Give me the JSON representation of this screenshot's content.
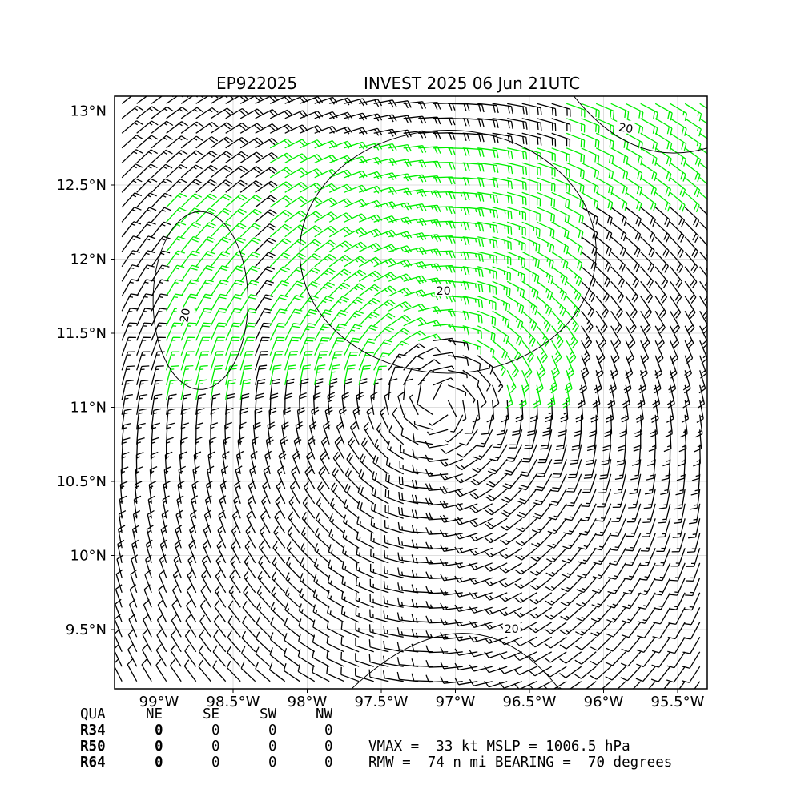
{
  "title": {
    "storm_id": "EP922025",
    "storm_info": "INVEST 2025 06 Jun 21UTC"
  },
  "map": {
    "lon_range": [
      -99.3,
      -95.3
    ],
    "lat_range": [
      9.1,
      13.1
    ],
    "lon_ticks": [
      {
        "value": -99.0,
        "label": "99°W"
      },
      {
        "value": -98.5,
        "label": "98.5°W"
      },
      {
        "value": -98.0,
        "label": "98°W"
      },
      {
        "value": -97.5,
        "label": "97.5°W"
      },
      {
        "value": -97.0,
        "label": "97°W"
      },
      {
        "value": -96.5,
        "label": "96.5°W"
      },
      {
        "value": -96.0,
        "label": "96°W"
      },
      {
        "value": -95.5,
        "label": "95.5°W"
      }
    ],
    "lat_ticks": [
      {
        "value": 13.0,
        "label": "13°N"
      },
      {
        "value": 12.5,
        "label": "12.5°N"
      },
      {
        "value": 12.0,
        "label": "12°N"
      },
      {
        "value": 11.5,
        "label": "11.5°N"
      },
      {
        "value": 11.0,
        "label": "11°N"
      },
      {
        "value": 10.5,
        "label": "10.5°N"
      },
      {
        "value": 10.0,
        "label": "10°N"
      },
      {
        "value": 9.5,
        "label": "9.5°N"
      }
    ],
    "grid": true,
    "center": {
      "lon": -97.1,
      "lat": 11.15
    },
    "barb_spacing_deg": 0.1,
    "colors": {
      "barb_default": "#000000",
      "barb_highlight": "#00ee00",
      "contour": "#000000"
    },
    "highlight_threshold_kt": 20,
    "contour_labels": [
      {
        "text": "20",
        "lon": -98.82,
        "lat": 11.62,
        "rotate": -80
      },
      {
        "text": "20",
        "lon": -97.08,
        "lat": 11.78,
        "rotate": 0
      },
      {
        "text": "20",
        "lon": -95.85,
        "lat": 12.88,
        "rotate": 10
      },
      {
        "text": "20",
        "lon": -96.62,
        "lat": 9.5,
        "rotate": 0
      }
    ]
  },
  "table": {
    "headers": [
      "QUA",
      "NE",
      "SE",
      "SW",
      "NW"
    ],
    "rows": [
      {
        "label": "R34",
        "values": [
          "0",
          "0",
          "0",
          "0"
        ]
      },
      {
        "label": "R50",
        "values": [
          "0",
          "0",
          "0",
          "0"
        ]
      },
      {
        "label": "R64",
        "values": [
          "0",
          "0",
          "0",
          "0"
        ]
      }
    ]
  },
  "stats": {
    "line1": "VMAX =  33 kt MSLP = 1006.5 hPa",
    "line2": "RMW =  74 n mi BEARING =  70 degrees"
  }
}
